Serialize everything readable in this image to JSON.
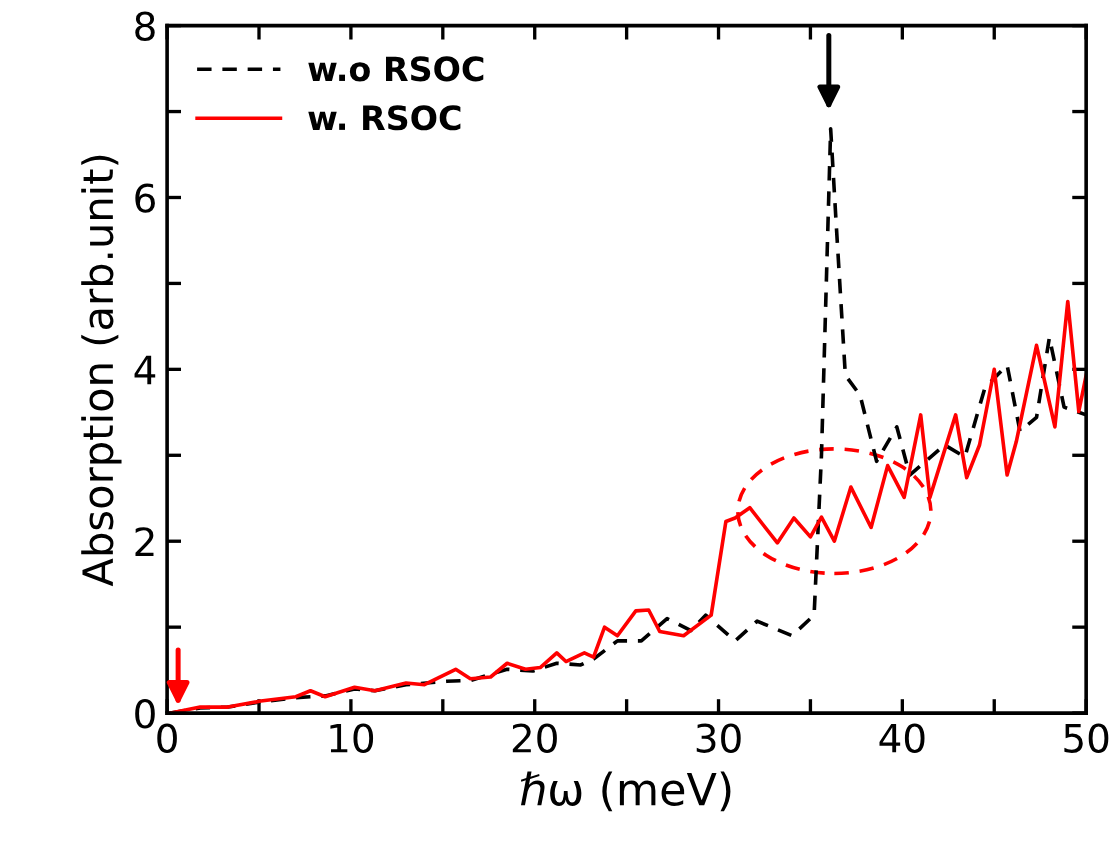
{
  "chart_data": {
    "type": "line",
    "xlabel": "ℏω (meV)",
    "ylabel": "Absorption (arb.unit)",
    "xlim": [
      0,
      50
    ],
    "ylim": [
      0,
      8
    ],
    "xticks": [
      0,
      {
        "value": 5,
        "label": null
      },
      10,
      {
        "value": 15,
        "label": null
      },
      20,
      {
        "value": 25,
        "label": null
      },
      30,
      {
        "value": 35,
        "label": null
      },
      40,
      {
        "value": 45,
        "label": null
      },
      50
    ],
    "yticks": [
      0,
      {
        "value": 1,
        "label": null
      },
      2,
      {
        "value": 3,
        "label": null
      },
      4,
      {
        "value": 5,
        "label": null
      },
      6,
      {
        "value": 7,
        "label": null
      },
      8
    ],
    "legend": "top left",
    "grid": false,
    "marker": "none",
    "series": [
      {
        "name": "w.o RSOC",
        "color": "#000000",
        "line_style": "dashed",
        "x": [
          0.2,
          1.8,
          3.3,
          5.1,
          7,
          8.6,
          10.2,
          11.3,
          13,
          15.2,
          16.5,
          18.5,
          19.9,
          21.2,
          22.5,
          23.2,
          24.5,
          25.8,
          27.2,
          28.5,
          29.3,
          30.9,
          32.1,
          34.0,
          35.2,
          35.6,
          36.1,
          36.4,
          36.9,
          37.7,
          38.6,
          39.7,
          40.4,
          42.3,
          43.4,
          44.5,
          45.7,
          46.4,
          47.3,
          48.0,
          48.8,
          50
        ],
        "values": [
          0,
          0.06,
          0.07,
          0.13,
          0.18,
          0.2,
          0.28,
          0.26,
          0.33,
          0.37,
          0.38,
          0.51,
          0.49,
          0.58,
          0.56,
          0.63,
          0.84,
          0.84,
          1.1,
          0.96,
          1.14,
          0.84,
          1.07,
          0.9,
          1.14,
          3.0,
          6.8,
          5.7,
          3.93,
          3.7,
          2.93,
          3.33,
          2.77,
          3.12,
          2.98,
          3.79,
          4.05,
          3.28,
          3.44,
          4.37,
          3.56,
          3.47
        ]
      },
      {
        "name": "w. RSOC",
        "color": "#ff0000",
        "line_style": "solid",
        "x": [
          0.2,
          1.8,
          3.3,
          5.1,
          7,
          7.8,
          8.6,
          10.2,
          11.3,
          13,
          14,
          15.7,
          16.5,
          17.6,
          18.5,
          19.5,
          20.3,
          21.2,
          21.7,
          22.7,
          23.2,
          23.8,
          24.5,
          25.5,
          26.2,
          26.8,
          28.1,
          29.6,
          30.4,
          30.9,
          31.7,
          33.2,
          34.1,
          35.0,
          35.6,
          36.3,
          37.2,
          38.3,
          39.2,
          40.1,
          41.0,
          41.5,
          42.9,
          43.5,
          44.2,
          45.0,
          45.7,
          46.2,
          47.3,
          48.3,
          49.0,
          49.6,
          50
        ],
        "values": [
          0,
          0.07,
          0.07,
          0.14,
          0.19,
          0.26,
          0.19,
          0.3,
          0.26,
          0.35,
          0.33,
          0.51,
          0.4,
          0.42,
          0.58,
          0.51,
          0.53,
          0.7,
          0.6,
          0.7,
          0.65,
          1.0,
          0.9,
          1.19,
          1.2,
          0.95,
          0.9,
          1.14,
          2.23,
          2.27,
          2.39,
          1.98,
          2.27,
          2.05,
          2.28,
          2.0,
          2.63,
          2.16,
          2.88,
          2.51,
          3.47,
          2.51,
          3.47,
          2.74,
          3.12,
          4.0,
          2.77,
          3.16,
          4.28,
          3.33,
          4.79,
          3.51,
          3.93
        ]
      }
    ]
  }
}
